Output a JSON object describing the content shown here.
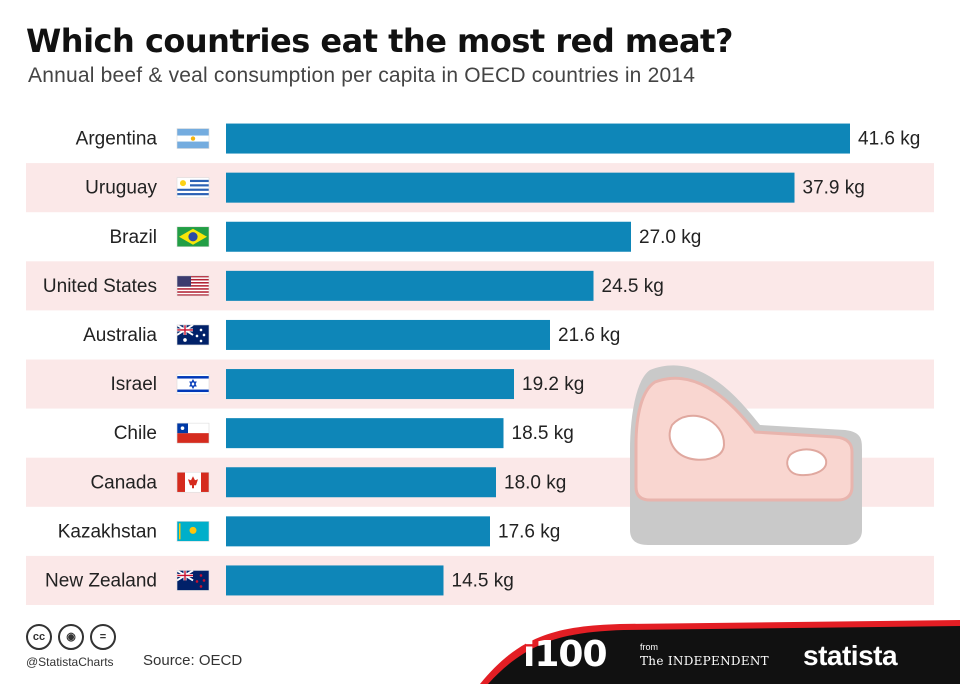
{
  "header": {
    "title": "Which countries eat the most red meat?",
    "subtitle": "Annual beef & veal consumption per capita in OECD countries in 2014"
  },
  "chart_data": {
    "type": "bar",
    "orientation": "horizontal",
    "categories": [
      "Argentina",
      "Uruguay",
      "Brazil",
      "United States",
      "Australia",
      "Israel",
      "Chile",
      "Canada",
      "Kazakhstan",
      "New Zealand"
    ],
    "values": [
      41.6,
      37.9,
      27.0,
      24.5,
      21.6,
      19.2,
      18.5,
      18.0,
      17.6,
      14.5
    ],
    "data_labels": [
      "41.6 kg",
      "37.9 kg",
      "27.0 kg",
      "24.5 kg",
      "21.6 kg",
      "19.2 kg",
      "18.5 kg",
      "18.0 kg",
      "17.6 kg",
      "14.5 kg"
    ],
    "flag_icons": [
      "argentina-flag-icon",
      "uruguay-flag-icon",
      "brazil-flag-icon",
      "united-states-flag-icon",
      "australia-flag-icon",
      "israel-flag-icon",
      "chile-flag-icon",
      "canada-flag-icon",
      "kazakhstan-flag-icon",
      "new-zealand-flag-icon"
    ],
    "xlim": [
      0,
      41.6
    ],
    "grid": false,
    "colors": {
      "bar": "#0e86b8",
      "stripe": "#fbe8e8"
    }
  },
  "decoration": {
    "icon": "meat-steak-icon",
    "fill": "#f9d6d0",
    "outline": "#c2c2c2"
  },
  "footer": {
    "handle": "@StatistaCharts",
    "source": "Source: OECD",
    "license_icons": [
      "cc-icon",
      "by-icon",
      "nd-icon"
    ],
    "brands": {
      "i100": "i100",
      "from": "from",
      "independent": "The INDEPENDENT",
      "statista": "statista"
    },
    "colors": {
      "band": "#000000",
      "accent": "#e31e24"
    }
  }
}
